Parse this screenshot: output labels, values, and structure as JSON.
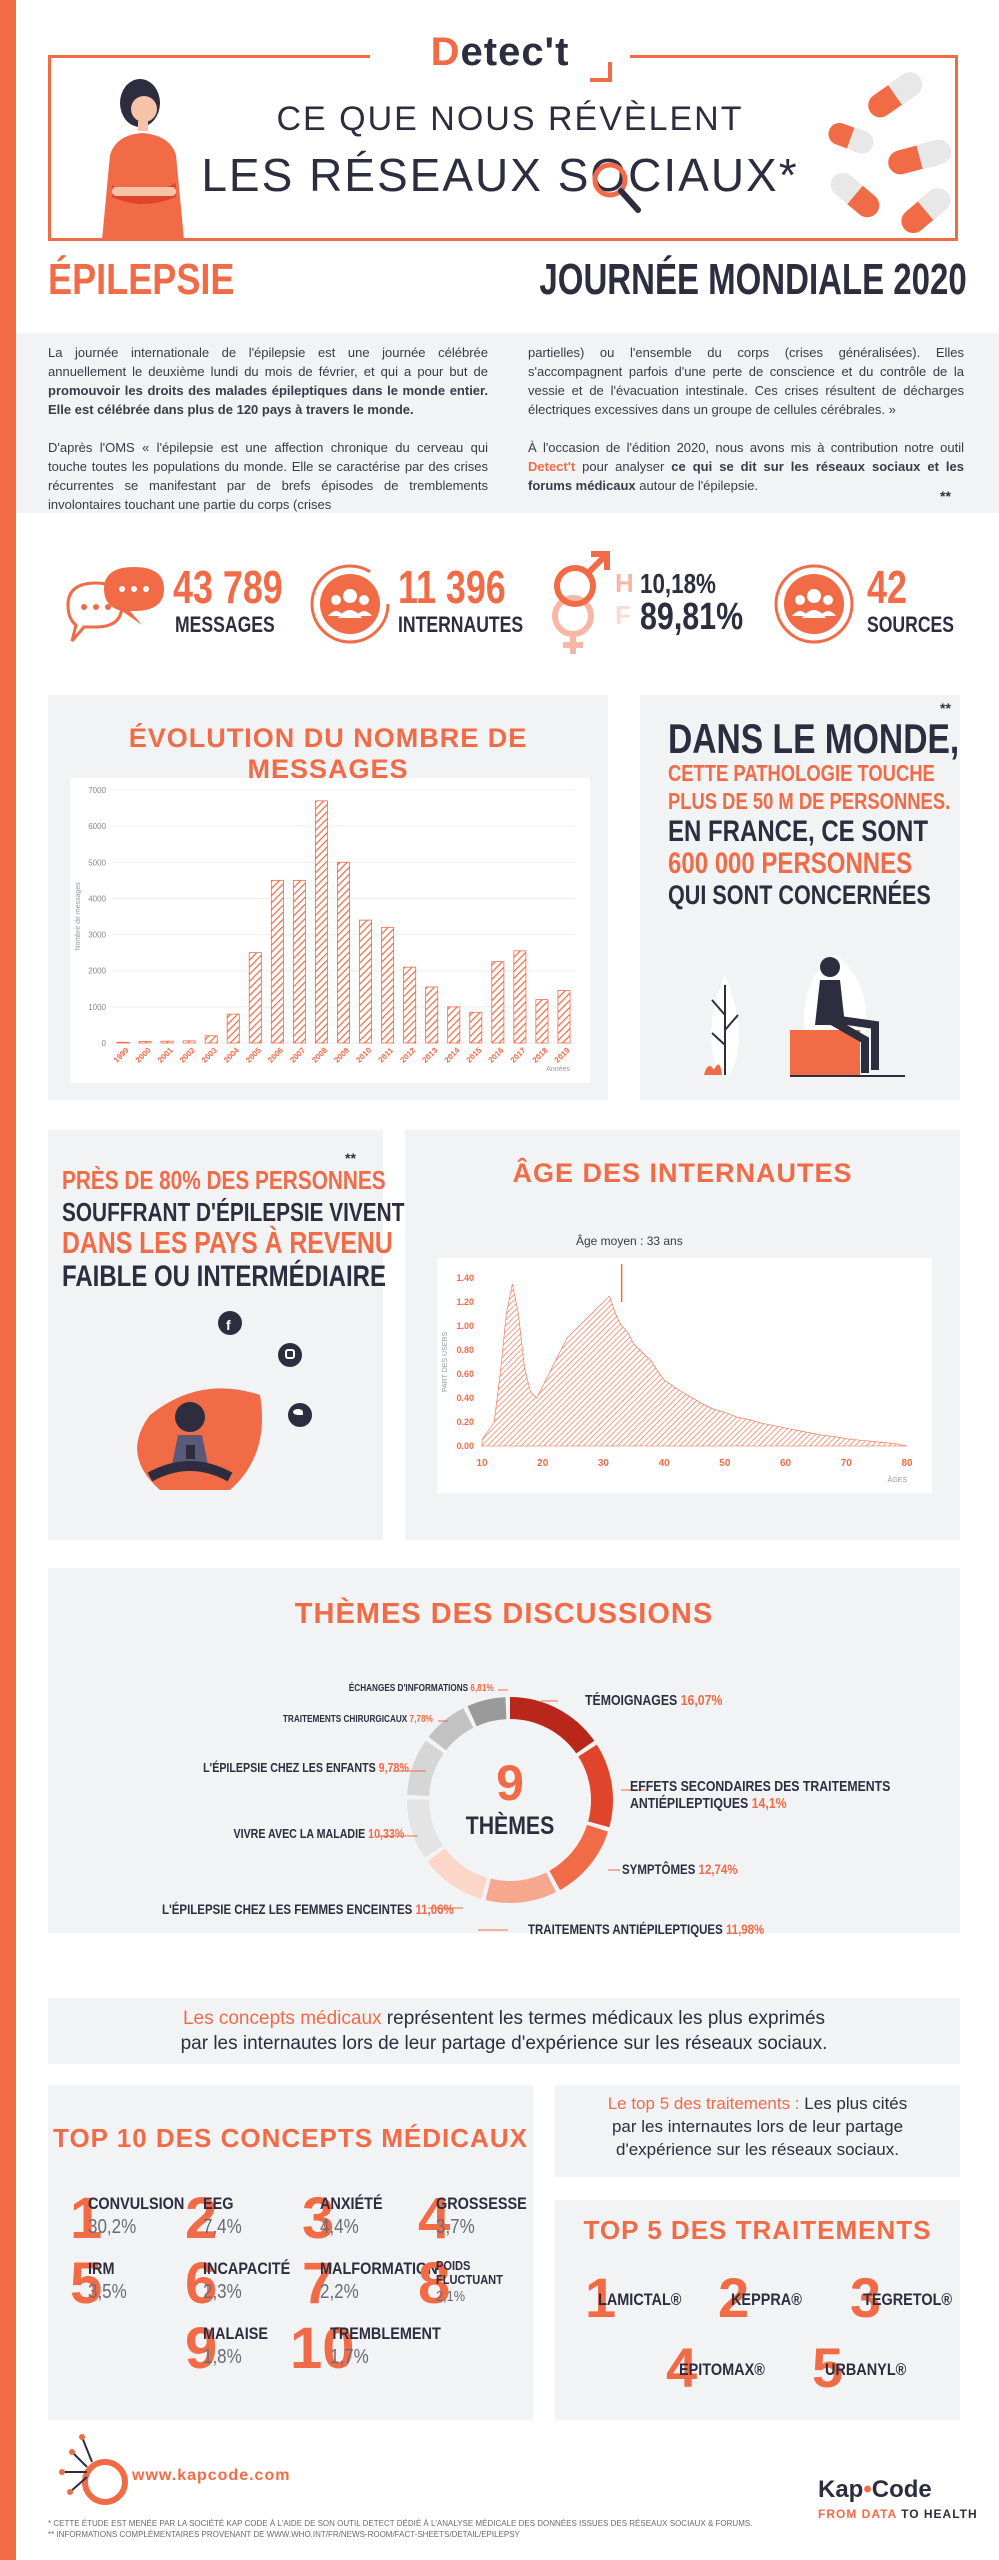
{
  "header": {
    "logo_d": "D",
    "logo_rest": "etec't",
    "title_line1": "CE QUE NOUS RÉVÈLENT",
    "title_line2": "LES RÉSEAUX SOCIAUX*"
  },
  "headings": {
    "left": "ÉPILEPSIE",
    "right": "JOURNÉE MONDIALE 2020"
  },
  "intro": {
    "p1_a": "La journée internationale de l'épilepsie est une journée célébrée annuellement le deuxième lundi du mois de février, et qui a pour but de ",
    "p1_b": "promouvoir les droits des malades épileptiques dans le monde entier. Elle est célébrée dans plus de 120 pays à travers le monde.",
    "p2": "D'après l'OMS « l'épilepsie est une affection chronique du cerveau qui touche toutes les populations du monde. Elle se caractérise par des crises récurrentes se manifestant par de brefs épisodes de tremblements involontaires touchant une partie du corps (crises",
    "p3": "partielles) ou l'ensemble du corps (crises généralisées). Elles s'accompagnent parfois d'une perte de conscience et du contrôle de la vessie et de l'évacuation intestinale. Ces crises résultent de décharges électriques excessives dans un groupe de cellules cérébrales. »",
    "p4_a": "À l'occasion de l'édition 2020, nous avons mis à contribution notre outil ",
    "p4_tool": "Detect't",
    "p4_b": " pour analyser ",
    "p4_c": "ce qui se dit sur les réseaux sociaux et les forums médicaux",
    "p4_d": " autour de l'épilepsie.",
    "stars": "**"
  },
  "stats": {
    "messages_value": "43 789",
    "messages_label": "MESSAGES",
    "users_value": "11 396",
    "users_label": "INTERNAUTES",
    "male_letter": "H",
    "male_pct": "10,18%",
    "female_letter": "F",
    "female_pct": "89,81%",
    "sources_value": "42",
    "sources_label": "SOURCES"
  },
  "evolution": {
    "title": "ÉVOLUTION DU NOMBRE DE MESSAGES"
  },
  "monde": {
    "stars": "**",
    "line1": "DANS LE MONDE,",
    "line2": "CETTE PATHOLOGIE TOUCHE",
    "line3": "PLUS DE 50 M DE PERSONNES.",
    "line4": "EN FRANCE, CE SONT",
    "line5": "600 000 PERSONNES",
    "line6": "QUI SONT CONCERNÉES"
  },
  "pays": {
    "stars": "**",
    "line1": "PRÈS DE 80% DES PERSONNES",
    "line2": "SOUFFRANT D'ÉPILEPSIE VIVENT",
    "line3": "DANS LES PAYS À REVENU",
    "line4": "FAIBLE OU INTERMÉDIAIRE"
  },
  "age": {
    "title": "ÂGE DES INTERNAUTES",
    "annotation": "Âge moyen : 33 ans"
  },
  "chart_data": [
    {
      "type": "bar",
      "title": "ÉVOLUTION DU NOMBRE DE MESSAGES",
      "ylabel": "Nombre de messages",
      "xlabel": "Années",
      "ylim": [
        0,
        7000
      ],
      "yticks": [
        "7000",
        "6000",
        "5000",
        "4000",
        "3000",
        "2000",
        "1000",
        "0"
      ],
      "categories": [
        "1999",
        "2000",
        "2001",
        "2002",
        "2003",
        "2004",
        "2005",
        "2006",
        "2007",
        "2008",
        "2009",
        "2010",
        "2011",
        "2012",
        "2013",
        "2014",
        "2015",
        "2016",
        "2017",
        "2018",
        "2019"
      ],
      "values": [
        20,
        40,
        50,
        60,
        200,
        800,
        2500,
        4500,
        4500,
        6700,
        5000,
        3400,
        3200,
        2100,
        1550,
        1000,
        850,
        2250,
        2550,
        1200,
        1450
      ],
      "grid": true
    },
    {
      "type": "area",
      "title": "ÂGE DES INTERNAUTES",
      "ylabel": "PART DES USERS",
      "xlabel": "ÂGES",
      "xlim": [
        10,
        80
      ],
      "ylim": [
        0,
        1.4
      ],
      "xticks": [
        "10",
        "20",
        "30",
        "40",
        "50",
        "60",
        "70",
        "80"
      ],
      "yticks": [
        "1.40",
        "1.20",
        "1.00",
        "0.80",
        "0.60",
        "0.40",
        "0.20",
        "0.00"
      ],
      "annotation": "Âge moyen : 33 ans",
      "x": [
        10,
        12,
        13,
        14,
        15,
        16,
        17,
        18,
        19,
        20,
        21,
        22,
        23,
        24,
        25,
        26,
        27,
        28,
        29,
        30,
        31,
        32,
        33,
        34,
        35,
        36,
        37,
        38,
        39,
        40,
        42,
        44,
        46,
        48,
        50,
        52,
        54,
        56,
        58,
        60,
        62,
        64,
        66,
        68,
        70,
        72,
        74,
        76,
        78,
        80
      ],
      "y": [
        0.05,
        0.2,
        0.6,
        1.1,
        1.35,
        1.1,
        0.65,
        0.45,
        0.4,
        0.5,
        0.6,
        0.7,
        0.8,
        0.9,
        0.95,
        1.0,
        1.05,
        1.1,
        1.15,
        1.2,
        1.25,
        1.1,
        1.0,
        0.95,
        0.85,
        0.8,
        0.75,
        0.7,
        0.62,
        0.55,
        0.48,
        0.42,
        0.36,
        0.31,
        0.28,
        0.24,
        0.22,
        0.19,
        0.17,
        0.15,
        0.13,
        0.11,
        0.09,
        0.08,
        0.06,
        0.05,
        0.04,
        0.03,
        0.02,
        0.0
      ]
    },
    {
      "type": "pie",
      "title": "THÈMES DES DISCUSSIONS",
      "categories": [
        "TÉMOIGNAGES",
        "EFFETS SECONDAIRES DES TRAITEMENTS ANTIÉPILEPTIQUES",
        "SYMPTÔMES",
        "TRAITEMENTS ANTIÉPILEPTIQUES",
        "L'ÉPILEPSIE CHEZ LES FEMMES ENCEINTES",
        "VIVRE AVEC LA MALADIE",
        "L'ÉPILEPSIE CHEZ LES ENFANTS",
        "TRAITEMENTS CHIRURGICAUX",
        "ÉCHANGES D'INFORMATIONS"
      ],
      "values": [
        16.07,
        14.1,
        12.74,
        11.98,
        11.06,
        10.33,
        9.78,
        7.78,
        6.81
      ]
    }
  ],
  "themes": {
    "title": "THÈMES DES DISCUSSIONS",
    "center_num": "9",
    "center_label": "THÈMES",
    "items": [
      {
        "label": "TÉMOIGNAGES",
        "pct": "16,07%"
      },
      {
        "label": "EFFETS SECONDAIRES DES TRAITEMENTS",
        "label2": "ANTIÉPILEPTIQUES",
        "pct": "14,1%"
      },
      {
        "label": "SYMPTÔMES",
        "pct": "12,74%"
      },
      {
        "label": "TRAITEMENTS ANTIÉPILEPTIQUES",
        "pct": "11,98%"
      },
      {
        "label": "L'ÉPILEPSIE CHEZ LES FEMMES ENCEINTES",
        "pct": "11,06%"
      },
      {
        "label": "VIVRE AVEC LA MALADIE",
        "pct": "10,33%"
      },
      {
        "label": "L'ÉPILEPSIE CHEZ LES ENFANTS",
        "pct": "9,78%"
      },
      {
        "label": "TRAITEMENTS CHIRURGICAUX",
        "pct": "7,78%"
      },
      {
        "label": "ÉCHANGES D'INFORMATIONS",
        "pct": "6,81%"
      }
    ],
    "colors": [
      "#b8271a",
      "#e0452c",
      "#f26b47",
      "#f7a78d",
      "#fcd6c9",
      "#e4e4e4",
      "#d6d6d6",
      "#c2c2c2",
      "#9a9a9a"
    ]
  },
  "concepts_note": {
    "a": "Les concepts médicaux",
    "b": " représentent les termes médicaux les plus exprimés",
    "c": "par les internautes lors de leur partage d'expérience sur les réseaux sociaux."
  },
  "top10": {
    "title": "TOP 10 DES CONCEPTS MÉDICAUX",
    "items": [
      {
        "num": "1",
        "name": "CONVULSION",
        "pct": "30,2%"
      },
      {
        "num": "2",
        "name": "EEG",
        "pct": "7,4%"
      },
      {
        "num": "3",
        "name": "ANXIÉTÉ",
        "pct": "4,4%"
      },
      {
        "num": "4",
        "name": "GROSSESSE",
        "pct": "3,7%"
      },
      {
        "num": "5",
        "name": "IRM",
        "pct": "3,5%"
      },
      {
        "num": "6",
        "name": "INCAPACITÉ",
        "pct": "2,3%"
      },
      {
        "num": "7",
        "name": "MALFORMATION",
        "pct": "2,2%"
      },
      {
        "num": "8",
        "name": "POIDS",
        "name2": "FLUCTUANT",
        "pct": "2,1%"
      },
      {
        "num": "9",
        "name": "MALAISE",
        "pct": "1,8%"
      },
      {
        "num": "10",
        "name": "TREMBLEMENT",
        "pct": "1,7%"
      }
    ]
  },
  "top5_note": {
    "a": "Le top 5 des traitements :",
    "b": " Les plus cités",
    "c": "par les internautes lors de leur partage",
    "d": "d'expérience sur les réseaux sociaux."
  },
  "top5": {
    "title": "TOP 5 DES TRAITEMENTS",
    "items": [
      {
        "num": "1",
        "name": "LAMICTAL®"
      },
      {
        "num": "2",
        "name": "KEPPRA®"
      },
      {
        "num": "3",
        "name": "TEGRETOL®"
      },
      {
        "num": "4",
        "name": "EPITOMAX®"
      },
      {
        "num": "5",
        "name": "URBANYL®"
      }
    ]
  },
  "footer": {
    "url": "www.kapcode.com",
    "brand_a": "Kap",
    "brand_b": "Code",
    "tagline_a": "FROM DATA",
    "tagline_b": " TO HEALTH",
    "note1": "* CETTE ÉTUDE EST MENÉE PAR LA SOCIÉTÉ KAP CODE À L'AIDE DE SON OUTIL DETECT DÉDIÉ À L'ANALYSE MÉDICALE DES DONNÉES ISSUES DES RÉSEAUX SOCIAUX & FORUMS.",
    "note2": "** INFORMATIONS COMPLÉMENTAIRES PROVENANT DE WWW.WHO.INT/FR/NEWS-ROOM/FACT-SHEETS/DETAIL/EPILEPSY"
  }
}
